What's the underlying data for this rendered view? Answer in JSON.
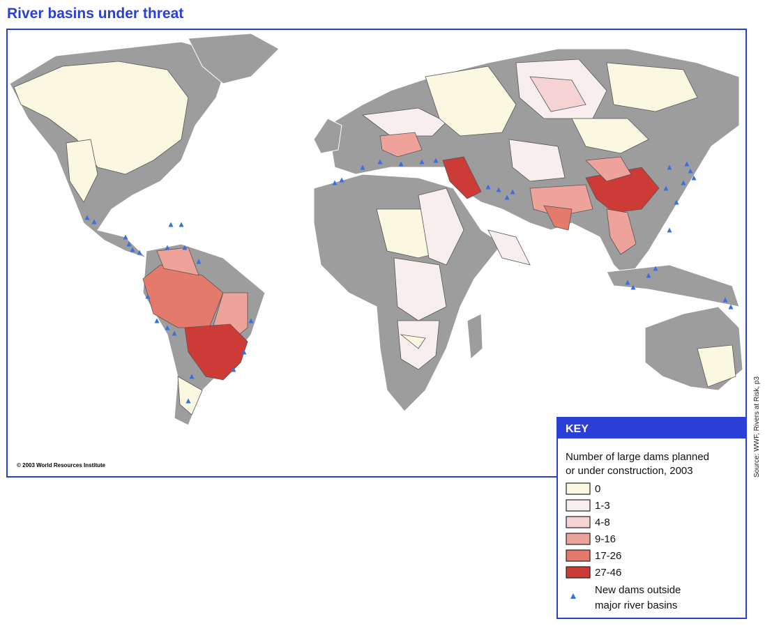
{
  "title": "River basins under threat",
  "copyright": "© 2003 World Resources Institute",
  "source": "Source: WWF, Rivers at Risk, p3",
  "key": {
    "heading": "KEY",
    "description": [
      "Number of large dams planned",
      "or under construction, 2003"
    ],
    "classes": [
      {
        "label": "0",
        "color": "#fbf8e2"
      },
      {
        "label": "1-3",
        "color": "#f9eeee"
      },
      {
        "label": "4-8",
        "color": "#f5d3d3"
      },
      {
        "label": "9-16",
        "color": "#eea39a"
      },
      {
        "label": "17-26",
        "color": "#e47a6c"
      },
      {
        "label": "27-46",
        "color": "#cc3b36"
      }
    ],
    "dams_label": [
      "New dams outside",
      "major river basins"
    ],
    "dams_color": "#3a6fe0"
  }
}
